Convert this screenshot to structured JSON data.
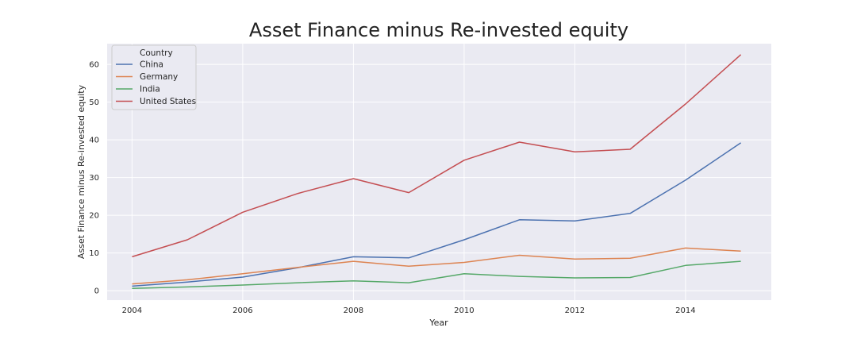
{
  "chart_data": {
    "type": "line",
    "title": "Asset Finance minus Re-invested equity",
    "xlabel": "Year",
    "ylabel": "Asset Finance minus Re-invested equity",
    "xlim": [
      2003.55,
      2015.55
    ],
    "ylim": [
      -2.5,
      65.5
    ],
    "x_ticks": [
      2004,
      2006,
      2008,
      2010,
      2012,
      2014
    ],
    "y_ticks": [
      0,
      10,
      20,
      30,
      40,
      50,
      60
    ],
    "grid": true,
    "legend": {
      "title": "Country",
      "placement": "top-left"
    },
    "x": [
      2004,
      2005,
      2006,
      2007,
      2008,
      2009,
      2010,
      2011,
      2012,
      2013,
      2014,
      2015
    ],
    "series": [
      {
        "name": "China",
        "color": "#4c72b0",
        "values": [
          1.2,
          2.3,
          3.6,
          6.1,
          9.0,
          8.7,
          13.5,
          18.8,
          18.5,
          20.5,
          29.3,
          39.2
        ]
      },
      {
        "name": "Germany",
        "color": "#dd8452",
        "values": [
          1.8,
          2.9,
          4.5,
          6.2,
          7.8,
          6.5,
          7.5,
          9.4,
          8.4,
          8.6,
          11.3,
          10.5
        ]
      },
      {
        "name": "India",
        "color": "#55a868",
        "values": [
          0.6,
          1.0,
          1.5,
          2.1,
          2.6,
          2.1,
          4.5,
          3.8,
          3.4,
          3.5,
          6.7,
          7.8
        ]
      },
      {
        "name": "United States",
        "color": "#c44e52",
        "values": [
          9.0,
          13.5,
          20.8,
          25.8,
          29.7,
          26.0,
          34.6,
          39.4,
          36.8,
          37.5,
          49.5,
          62.6
        ]
      }
    ]
  }
}
